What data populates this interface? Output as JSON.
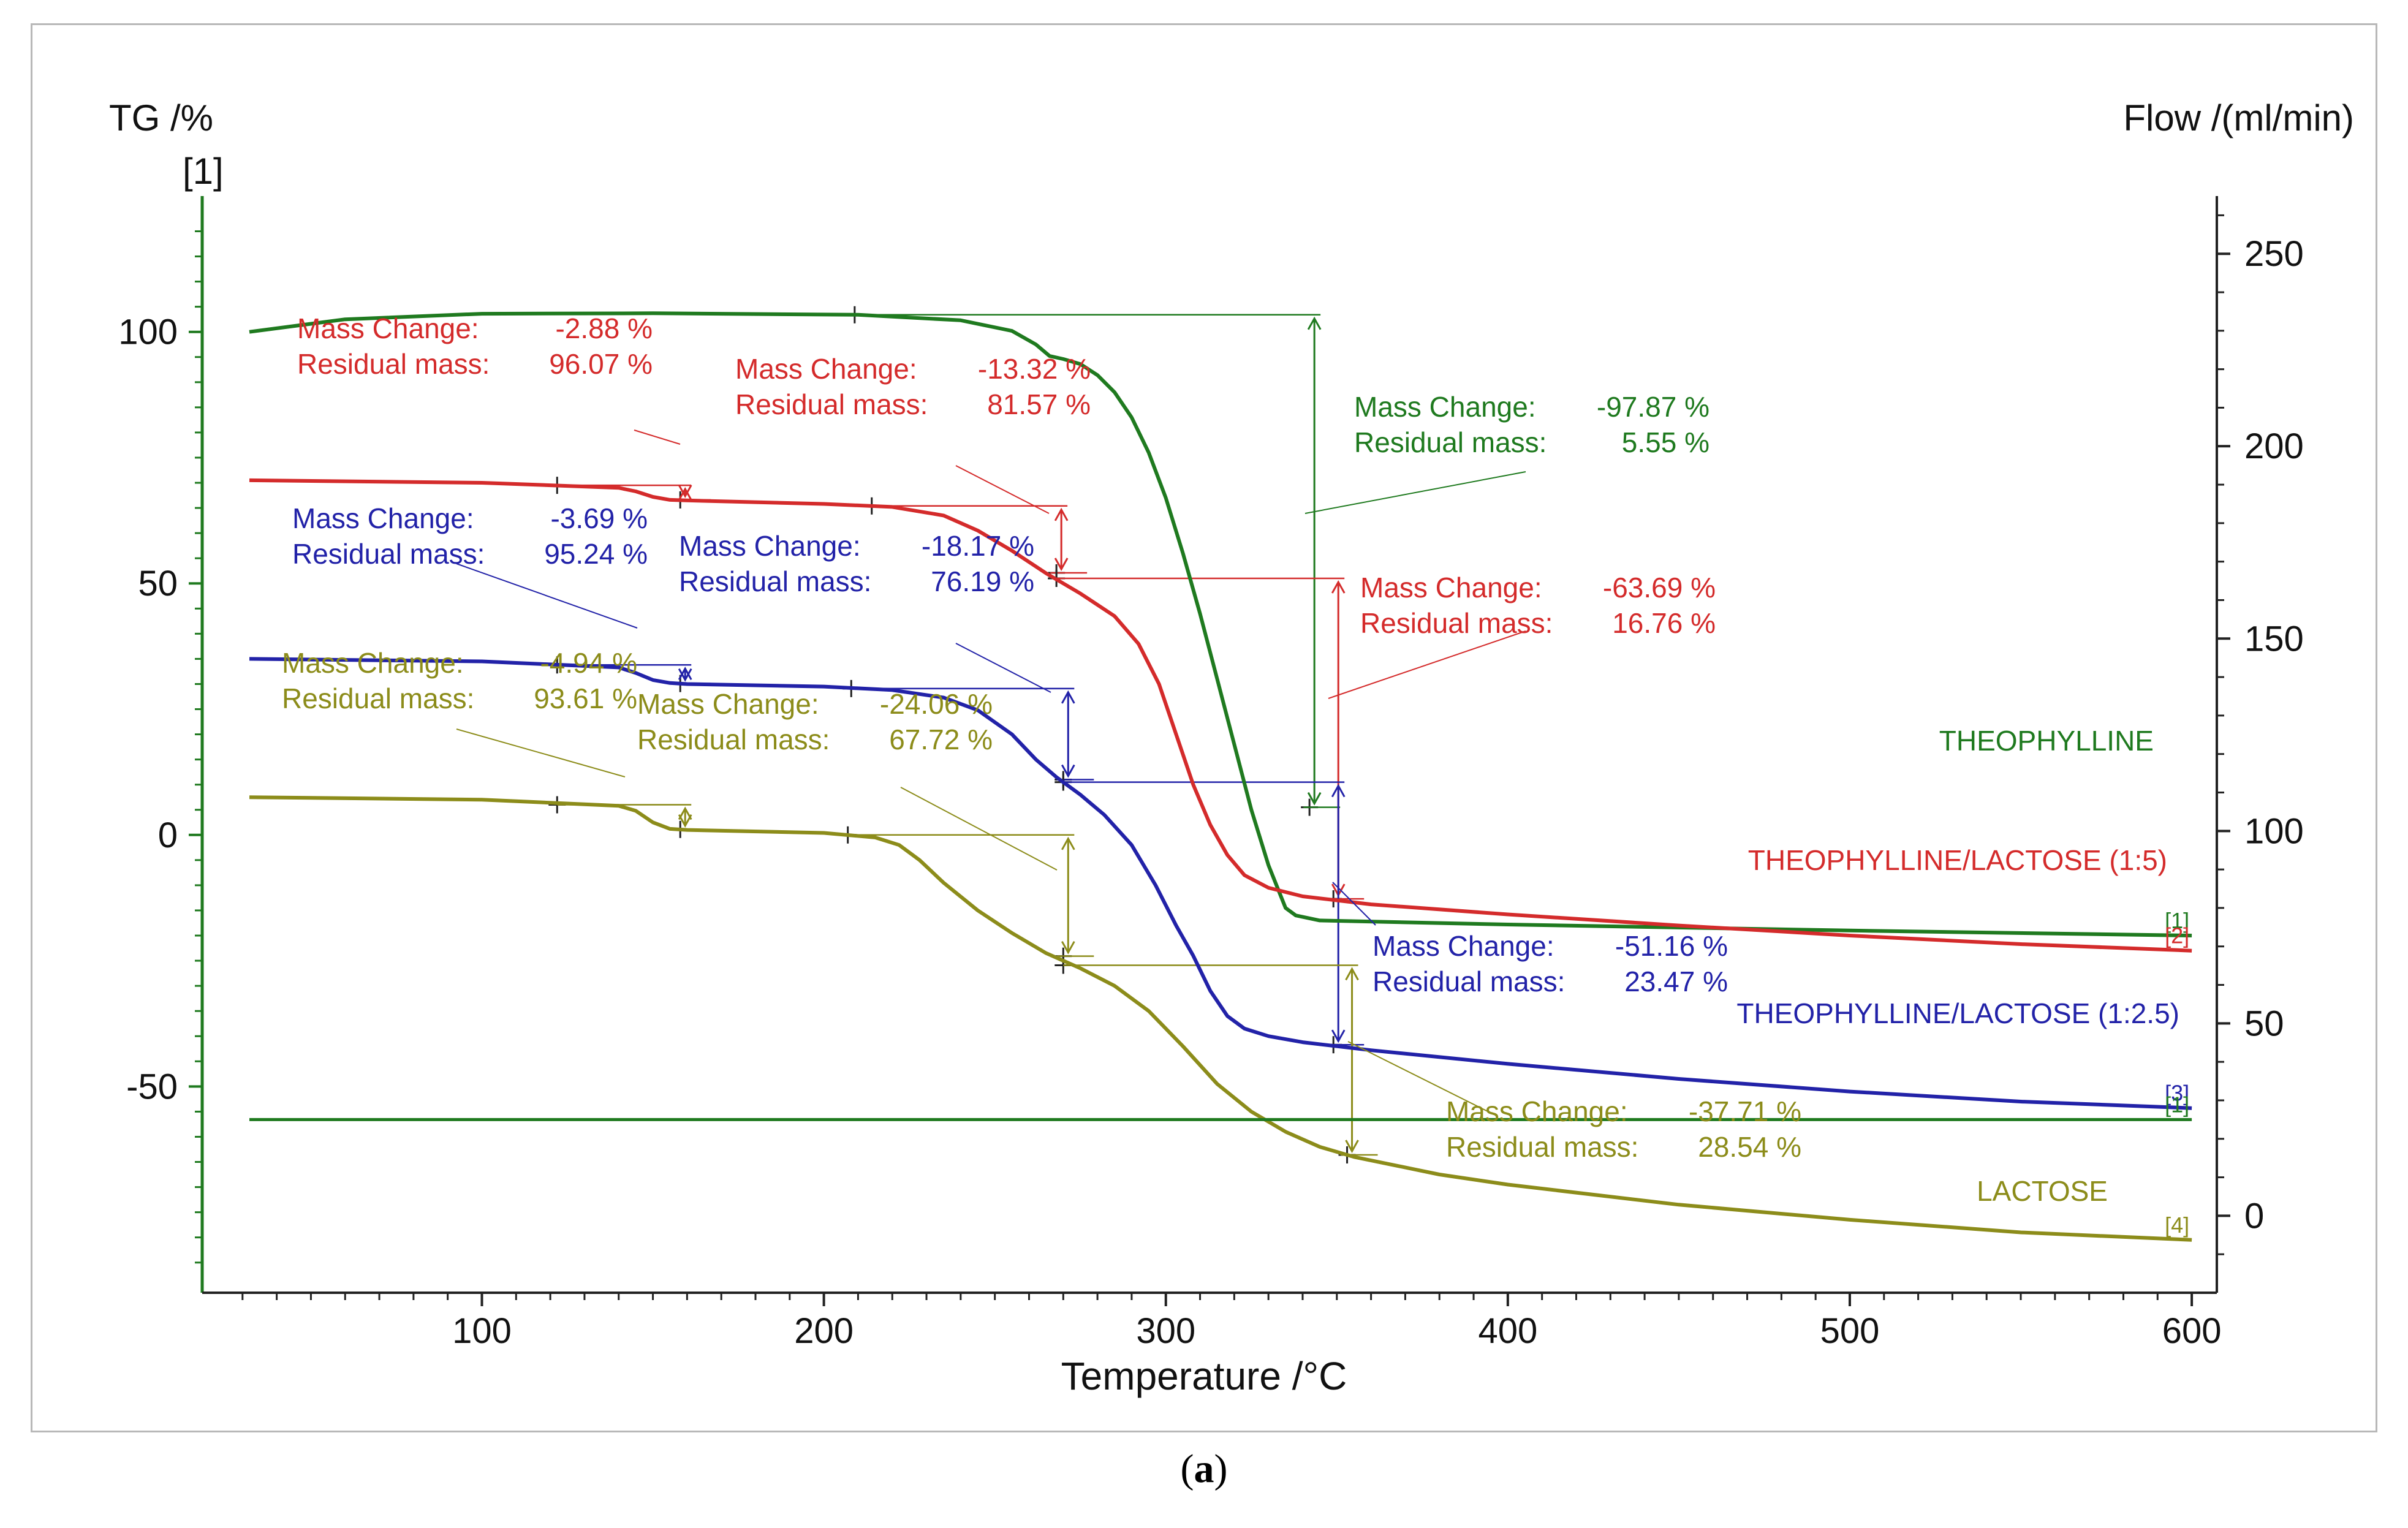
{
  "caption": {
    "open": "(",
    "letter": "a",
    "close": ")"
  },
  "chart_data": {
    "type": "line",
    "title": "",
    "xlabel": "Temperature /°C",
    "ylabel": "TG /%",
    "ylabel_sub": "[1]",
    "y2label": "Flow /(ml/min)",
    "xlim": [
      20,
      605
    ],
    "ylim": [
      -91,
      127
    ],
    "y2lim": [
      -20,
      265
    ],
    "x_ticks": [
      100,
      200,
      300,
      400,
      500,
      600
    ],
    "y_ticks": [
      100,
      50,
      0,
      -50
    ],
    "y2_ticks": [
      250,
      200,
      150,
      100,
      50,
      0
    ],
    "colors": {
      "green": "#1f7a1f",
      "red": "#d42b2b",
      "blue": "#2222a8",
      "olive": "#8c8c1a"
    },
    "series": [
      {
        "name": "THEOPHYLLINE",
        "index": "[1]",
        "color": "#1f7a1f",
        "points": [
          [
            32,
            100
          ],
          [
            60,
            102.5
          ],
          [
            100,
            103.6
          ],
          [
            150,
            103.7
          ],
          [
            210,
            103.4
          ],
          [
            240,
            102.3
          ],
          [
            255,
            100.2
          ],
          [
            262,
            97.5
          ],
          [
            266,
            95.2
          ],
          [
            270,
            94.6
          ],
          [
            275,
            93.6
          ],
          [
            280,
            91.4
          ],
          [
            285,
            88
          ],
          [
            290,
            83
          ],
          [
            295,
            76
          ],
          [
            300,
            67
          ],
          [
            305,
            56
          ],
          [
            310,
            44
          ],
          [
            315,
            31
          ],
          [
            320,
            18
          ],
          [
            325,
            5
          ],
          [
            330,
            -6
          ],
          [
            335,
            -14.5
          ],
          [
            338,
            -16
          ],
          [
            345,
            -17
          ],
          [
            400,
            -17.8
          ],
          [
            500,
            -19
          ],
          [
            600,
            -20
          ]
        ]
      },
      {
        "name": "THEOPHYLLINE/LACTOSE (1:5)",
        "index": "[2]",
        "color": "#d42b2b",
        "points": [
          [
            32,
            70.5
          ],
          [
            100,
            70
          ],
          [
            140,
            69
          ],
          [
            145,
            68.3
          ],
          [
            150,
            67.2
          ],
          [
            155,
            66.6
          ],
          [
            160,
            66.5
          ],
          [
            200,
            65.8
          ],
          [
            220,
            65.2
          ],
          [
            235,
            63.5
          ],
          [
            245,
            60.5
          ],
          [
            255,
            56.5
          ],
          [
            265,
            52
          ],
          [
            275,
            48
          ],
          [
            285,
            43.5
          ],
          [
            292,
            38
          ],
          [
            298,
            30
          ],
          [
            303,
            20
          ],
          [
            308,
            10
          ],
          [
            313,
            2
          ],
          [
            318,
            -4
          ],
          [
            323,
            -8
          ],
          [
            330,
            -10.5
          ],
          [
            340,
            -12.2
          ],
          [
            360,
            -13.8
          ],
          [
            400,
            -15.8
          ],
          [
            450,
            -18
          ],
          [
            500,
            -20
          ],
          [
            550,
            -21.7
          ],
          [
            600,
            -23
          ]
        ]
      },
      {
        "name": "THEOPHYLLINE/LACTOSE (1:2.5)",
        "index": "[3]",
        "color": "#2222a8",
        "points": [
          [
            32,
            35
          ],
          [
            100,
            34.5
          ],
          [
            140,
            33.3
          ],
          [
            145,
            32.2
          ],
          [
            150,
            30.8
          ],
          [
            155,
            30.2
          ],
          [
            160,
            30
          ],
          [
            200,
            29.5
          ],
          [
            220,
            28.8
          ],
          [
            235,
            27.3
          ],
          [
            245,
            24.8
          ],
          [
            255,
            20
          ],
          [
            262,
            15
          ],
          [
            268,
            11.5
          ],
          [
            275,
            8
          ],
          [
            282,
            4
          ],
          [
            290,
            -2
          ],
          [
            297,
            -10
          ],
          [
            303,
            -18
          ],
          [
            308,
            -24
          ],
          [
            313,
            -31
          ],
          [
            318,
            -36
          ],
          [
            323,
            -38.5
          ],
          [
            330,
            -40
          ],
          [
            340,
            -41.2
          ],
          [
            360,
            -42.8
          ],
          [
            400,
            -45.5
          ],
          [
            450,
            -48.5
          ],
          [
            500,
            -51
          ],
          [
            550,
            -53
          ],
          [
            600,
            -54.3
          ]
        ]
      },
      {
        "name": "LACTOSE",
        "index": "[4]",
        "color": "#8c8c1a",
        "points": [
          [
            32,
            7.5
          ],
          [
            100,
            7
          ],
          [
            140,
            5.8
          ],
          [
            145,
            4.8
          ],
          [
            150,
            2.5
          ],
          [
            155,
            1.2
          ],
          [
            160,
            1
          ],
          [
            200,
            0.4
          ],
          [
            215,
            -0.5
          ],
          [
            222,
            -2
          ],
          [
            228,
            -5
          ],
          [
            235,
            -9.5
          ],
          [
            245,
            -15
          ],
          [
            255,
            -19.5
          ],
          [
            265,
            -23.5
          ],
          [
            275,
            -26.5
          ],
          [
            285,
            -30
          ],
          [
            295,
            -35
          ],
          [
            305,
            -42
          ],
          [
            315,
            -49.5
          ],
          [
            325,
            -55
          ],
          [
            335,
            -59
          ],
          [
            345,
            -62
          ],
          [
            355,
            -64
          ],
          [
            380,
            -67.5
          ],
          [
            400,
            -69.5
          ],
          [
            450,
            -73.5
          ],
          [
            500,
            -76.5
          ],
          [
            550,
            -79
          ],
          [
            600,
            -80.5
          ]
        ]
      },
      {
        "name": "Flow",
        "index": "[1]",
        "color": "#1f7a1f",
        "axis": "y2",
        "points": [
          [
            32,
            25
          ],
          [
            600,
            25
          ]
        ]
      }
    ],
    "annotations": [
      {
        "series": "THEOPHYLLINE/LACTOSE (1:5)",
        "color": "#d42b2b",
        "mass_change_label": "Mass Change:",
        "mass_change_value": "-2.88 %",
        "residual_label": "Residual mass:",
        "residual_value": "96.07 %"
      },
      {
        "series": "THEOPHYLLINE/LACTOSE (1:5)",
        "color": "#d42b2b",
        "mass_change_label": "Mass Change:",
        "mass_change_value": "-13.32 %",
        "residual_label": "Residual mass:",
        "residual_value": "81.57 %"
      },
      {
        "series": "THEOPHYLLINE",
        "color": "#1f7a1f",
        "mass_change_label": "Mass Change:",
        "mass_change_value": "-97.87 %",
        "residual_label": "Residual mass:",
        "residual_value": "5.55 %"
      },
      {
        "series": "THEOPHYLLINE/LACTOSE (1:2.5)",
        "color": "#2222a8",
        "mass_change_label": "Mass Change:",
        "mass_change_value": "-3.69 %",
        "residual_label": "Residual mass:",
        "residual_value": "95.24 %"
      },
      {
        "series": "THEOPHYLLINE/LACTOSE (1:2.5)",
        "color": "#2222a8",
        "mass_change_label": "Mass Change:",
        "mass_change_value": "-18.17 %",
        "residual_label": "Residual mass:",
        "residual_value": "76.19 %"
      },
      {
        "series": "THEOPHYLLINE/LACTOSE (1:5)",
        "color": "#d42b2b",
        "mass_change_label": "Mass Change:",
        "mass_change_value": "-63.69 %",
        "residual_label": "Residual mass:",
        "residual_value": "16.76 %"
      },
      {
        "series": "LACTOSE",
        "color": "#8c8c1a",
        "mass_change_label": "Mass Change:",
        "mass_change_value": "-4.94 %",
        "residual_label": "Residual mass:",
        "residual_value": "93.61 %"
      },
      {
        "series": "LACTOSE",
        "color": "#8c8c1a",
        "mass_change_label": "Mass Change:",
        "mass_change_value": "-24.06 %",
        "residual_label": "Residual mass:",
        "residual_value": "67.72 %"
      },
      {
        "series": "THEOPHYLLINE/LACTOSE (1:2.5)",
        "color": "#2222a8",
        "mass_change_label": "Mass Change:",
        "mass_change_value": "-51.16 %",
        "residual_label": "Residual mass:",
        "residual_value": "23.47 %"
      },
      {
        "series": "LACTOSE",
        "color": "#8c8c1a",
        "mass_change_label": "Mass Change:",
        "mass_change_value": "-37.71 %",
        "residual_label": "Residual mass:",
        "residual_value": "28.54 %"
      }
    ],
    "steps": [
      {
        "color": "#d42b2b",
        "x_start": 122,
        "x_end": 158,
        "y_start": 69.5,
        "y_end": 66.6
      },
      {
        "color": "#d42b2b",
        "x_start": 214,
        "x_end": 268,
        "y_start": 65.4,
        "y_end": 52.1
      },
      {
        "color": "#1f7a1f",
        "x_start": 209,
        "x_end": 342,
        "y_start": 103.4,
        "y_end": 5.5
      },
      {
        "color": "#2222a8",
        "x_start": 122,
        "x_end": 158,
        "y_start": 33.8,
        "y_end": 30.1
      },
      {
        "color": "#2222a8",
        "x_start": 208,
        "x_end": 270,
        "y_start": 29.1,
        "y_end": 11
      },
      {
        "color": "#d42b2b",
        "x_start": 268,
        "x_end": 349,
        "y_start": 51,
        "y_end": -12.7
      },
      {
        "color": "#8c8c1a",
        "x_start": 122,
        "x_end": 158,
        "y_start": 6,
        "y_end": 1.1
      },
      {
        "color": "#8c8c1a",
        "x_start": 207,
        "x_end": 270,
        "y_start": 0,
        "y_end": -24.1
      },
      {
        "color": "#2222a8",
        "x_start": 270,
        "x_end": 349,
        "y_start": 10.5,
        "y_end": -41.7
      },
      {
        "color": "#8c8c1a",
        "x_start": 270,
        "x_end": 353,
        "y_start": -25.9,
        "y_end": -63.6
      }
    ]
  }
}
